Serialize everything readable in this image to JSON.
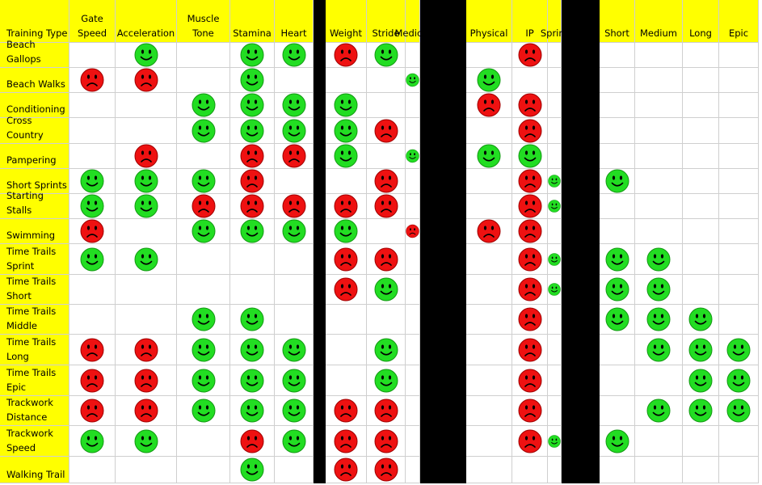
{
  "table": {
    "corner_label": "Training Type",
    "columns": [
      [
        "Gate",
        "Speed"
      ],
      [
        "",
        "Acceleration"
      ],
      [
        "Muscle",
        "Tone"
      ],
      [
        "",
        "Stamina"
      ],
      [
        "",
        "Heart"
      ],
      [
        "",
        "Weight"
      ],
      [
        "",
        "Stride"
      ],
      [
        "",
        "Medical"
      ],
      [
        "",
        "Physical"
      ],
      [
        "",
        "IP"
      ],
      [
        "",
        "Sprint"
      ],
      [
        "",
        "Short"
      ],
      [
        "",
        "Medium"
      ],
      [
        "",
        "Long"
      ],
      [
        "",
        "Epic"
      ]
    ],
    "legend": {
      "good": "happy-face-icon",
      "bad": "sad-face-icon",
      "good_color": "#22dd22",
      "bad_color": "#ee1111"
    },
    "rows": [
      {
        "label": [
          "Beach Gallops"
        ],
        "marks": [
          "",
          "good",
          "",
          "good",
          "good",
          "bad",
          "good",
          "",
          "",
          "bad",
          "",
          "",
          "",
          "",
          ""
        ]
      },
      {
        "label": [
          "Beach Walks"
        ],
        "marks": [
          "bad",
          "bad",
          "",
          "good",
          "",
          "",
          "",
          "good",
          "good",
          "",
          "",
          "",
          "",
          "",
          ""
        ]
      },
      {
        "label": [
          "Conditioning"
        ],
        "marks": [
          "",
          "",
          "good",
          "good",
          "good",
          "good",
          "",
          "",
          "bad",
          "bad",
          "",
          "",
          "",
          "",
          ""
        ]
      },
      {
        "label": [
          "Cross Country"
        ],
        "marks": [
          "",
          "",
          "good",
          "good",
          "good",
          "good",
          "bad",
          "",
          "",
          "bad",
          "",
          "",
          "",
          "",
          ""
        ]
      },
      {
        "label": [
          "Pampering"
        ],
        "marks": [
          "",
          "bad",
          "",
          "bad",
          "bad",
          "good",
          "",
          "good",
          "good",
          "good",
          "",
          "",
          "",
          "",
          ""
        ]
      },
      {
        "label": [
          "Short Sprints"
        ],
        "marks": [
          "good",
          "good",
          "good",
          "bad",
          "",
          "",
          "bad",
          "",
          "",
          "bad",
          "good",
          "good",
          "",
          "",
          ""
        ]
      },
      {
        "label": [
          "Starting Stalls"
        ],
        "marks": [
          "good",
          "good",
          "bad",
          "bad",
          "bad",
          "bad",
          "bad",
          "",
          "",
          "bad",
          "good",
          "",
          "",
          "",
          ""
        ]
      },
      {
        "label": [
          "Swimming"
        ],
        "marks": [
          "bad",
          "",
          "good",
          "good",
          "good",
          "good",
          "",
          "bad",
          "bad",
          "bad",
          "",
          "",
          "",
          "",
          ""
        ]
      },
      {
        "label": [
          "Time Trails",
          "Sprint"
        ],
        "marks": [
          "good",
          "good",
          "",
          "",
          "",
          "bad",
          "bad",
          "",
          "",
          "bad",
          "good",
          "good",
          "good",
          "",
          ""
        ]
      },
      {
        "label": [
          "Time Trails",
          "Short"
        ],
        "marks": [
          "",
          "",
          "",
          "",
          "",
          "bad",
          "good",
          "",
          "",
          "bad",
          "good",
          "good",
          "good",
          "",
          ""
        ]
      },
      {
        "label": [
          "Time Trails",
          "Middle"
        ],
        "marks": [
          "",
          "",
          "good",
          "good",
          "",
          "",
          "",
          "",
          "",
          "bad",
          "",
          "good",
          "good",
          "good",
          ""
        ]
      },
      {
        "label": [
          "Time Trails",
          "Long"
        ],
        "marks": [
          "bad",
          "bad",
          "good",
          "good",
          "good",
          "",
          "good",
          "",
          "",
          "bad",
          "",
          "",
          "good",
          "good",
          "good"
        ]
      },
      {
        "label": [
          "Time Trails",
          "Epic"
        ],
        "marks": [
          "bad",
          "bad",
          "good",
          "good",
          "good",
          "",
          "good",
          "",
          "",
          "bad",
          "",
          "",
          "",
          "good",
          "good"
        ]
      },
      {
        "label": [
          "Trackwork",
          "Distance"
        ],
        "marks": [
          "bad",
          "bad",
          "good",
          "good",
          "good",
          "bad",
          "bad",
          "",
          "",
          "bad",
          "",
          "",
          "good",
          "good",
          "good"
        ]
      },
      {
        "label": [
          "Trackwork",
          "Speed"
        ],
        "marks": [
          "good",
          "good",
          "",
          "bad",
          "good",
          "bad",
          "bad",
          "",
          "",
          "bad",
          "good",
          "good",
          "",
          "",
          ""
        ]
      },
      {
        "label": [
          "Walking Trail"
        ],
        "marks": [
          "",
          "",
          "",
          "good",
          "",
          "bad",
          "bad",
          "",
          "",
          "",
          "",
          "",
          "",
          "",
          ""
        ]
      }
    ]
  }
}
